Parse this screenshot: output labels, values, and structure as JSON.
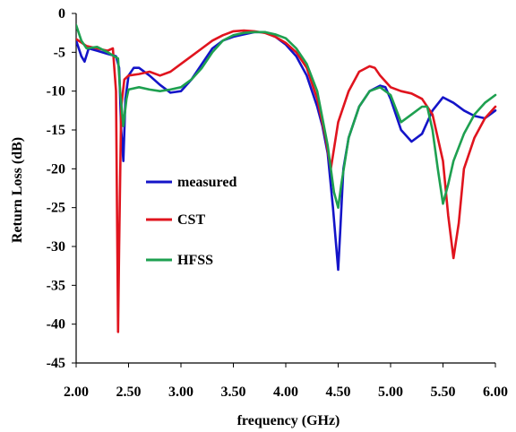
{
  "chart_data": {
    "type": "line",
    "title": "",
    "xlabel": "frequency (GHz)",
    "ylabel": "Return Loss (dB)",
    "xlim": [
      2.0,
      6.0
    ],
    "ylim": [
      -45,
      0
    ],
    "x_ticks": [
      2.0,
      2.5,
      3.0,
      3.5,
      4.0,
      4.5,
      5.0,
      5.5,
      6.0
    ],
    "x_tick_labels": [
      "2.00",
      "2.50",
      "3.00",
      "3.50",
      "4.00",
      "4.50",
      "5.00",
      "5.50",
      "6.00"
    ],
    "y_ticks": [
      0,
      -5,
      -10,
      -15,
      -20,
      -25,
      -30,
      -35,
      -40,
      -45
    ],
    "y_tick_labels": [
      "0",
      "-5",
      "-10",
      "-15",
      "-20",
      "-25",
      "-30",
      "-35",
      "-40",
      "-45"
    ],
    "grid": false,
    "legend_position": "center-left",
    "series": [
      {
        "name": "measured",
        "color": "#1414c8",
        "points": [
          [
            2.0,
            -3.5
          ],
          [
            2.05,
            -5.5
          ],
          [
            2.08,
            -6.2
          ],
          [
            2.12,
            -4.5
          ],
          [
            2.2,
            -4.8
          ],
          [
            2.3,
            -5.2
          ],
          [
            2.38,
            -5.5
          ],
          [
            2.41,
            -7
          ],
          [
            2.43,
            -15
          ],
          [
            2.45,
            -19
          ],
          [
            2.47,
            -11
          ],
          [
            2.5,
            -8
          ],
          [
            2.55,
            -7
          ],
          [
            2.6,
            -7
          ],
          [
            2.7,
            -8
          ],
          [
            2.8,
            -9.2
          ],
          [
            2.9,
            -10.2
          ],
          [
            3.0,
            -10
          ],
          [
            3.1,
            -8.5
          ],
          [
            3.2,
            -6.5
          ],
          [
            3.3,
            -4.5
          ],
          [
            3.4,
            -3.5
          ],
          [
            3.5,
            -3
          ],
          [
            3.6,
            -2.7
          ],
          [
            3.7,
            -2.4
          ],
          [
            3.8,
            -2.4
          ],
          [
            3.9,
            -3
          ],
          [
            4.0,
            -4
          ],
          [
            4.1,
            -5.5
          ],
          [
            4.2,
            -8
          ],
          [
            4.3,
            -12
          ],
          [
            4.35,
            -14.5
          ],
          [
            4.4,
            -18
          ],
          [
            4.45,
            -25
          ],
          [
            4.5,
            -33
          ],
          [
            4.52,
            -28
          ],
          [
            4.55,
            -20
          ],
          [
            4.6,
            -16
          ],
          [
            4.7,
            -12
          ],
          [
            4.8,
            -10
          ],
          [
            4.9,
            -9.3
          ],
          [
            4.95,
            -9.5
          ],
          [
            5.0,
            -11
          ],
          [
            5.1,
            -15
          ],
          [
            5.2,
            -16.5
          ],
          [
            5.3,
            -15.5
          ],
          [
            5.4,
            -12.5
          ],
          [
            5.5,
            -10.8
          ],
          [
            5.6,
            -11.5
          ],
          [
            5.7,
            -12.5
          ],
          [
            5.8,
            -13.2
          ],
          [
            5.9,
            -13.5
          ],
          [
            6.0,
            -12.5
          ]
        ]
      },
      {
        "name": "CST",
        "color": "#e0141e",
        "points": [
          [
            2.0,
            -3.3
          ],
          [
            2.1,
            -4.2
          ],
          [
            2.2,
            -4.5
          ],
          [
            2.3,
            -4.8
          ],
          [
            2.35,
            -4.5
          ],
          [
            2.38,
            -10
          ],
          [
            2.39,
            -25
          ],
          [
            2.4,
            -41
          ],
          [
            2.41,
            -30
          ],
          [
            2.43,
            -12
          ],
          [
            2.46,
            -8.5
          ],
          [
            2.5,
            -8
          ],
          [
            2.6,
            -7.8
          ],
          [
            2.7,
            -7.5
          ],
          [
            2.8,
            -8
          ],
          [
            2.9,
            -7.5
          ],
          [
            3.0,
            -6.5
          ],
          [
            3.1,
            -5.5
          ],
          [
            3.2,
            -4.5
          ],
          [
            3.3,
            -3.5
          ],
          [
            3.4,
            -2.8
          ],
          [
            3.5,
            -2.3
          ],
          [
            3.6,
            -2.2
          ],
          [
            3.7,
            -2.3
          ],
          [
            3.8,
            -2.5
          ],
          [
            3.9,
            -3
          ],
          [
            4.0,
            -3.8
          ],
          [
            4.1,
            -5
          ],
          [
            4.2,
            -7
          ],
          [
            4.3,
            -11
          ],
          [
            4.38,
            -16
          ],
          [
            4.43,
            -20
          ],
          [
            4.5,
            -14
          ],
          [
            4.6,
            -10
          ],
          [
            4.7,
            -7.5
          ],
          [
            4.8,
            -6.8
          ],
          [
            4.85,
            -7
          ],
          [
            4.9,
            -8
          ],
          [
            5.0,
            -9.5
          ],
          [
            5.1,
            -10
          ],
          [
            5.2,
            -10.3
          ],
          [
            5.3,
            -11
          ],
          [
            5.4,
            -13
          ],
          [
            5.5,
            -19
          ],
          [
            5.55,
            -26
          ],
          [
            5.6,
            -31.5
          ],
          [
            5.65,
            -27
          ],
          [
            5.7,
            -20
          ],
          [
            5.8,
            -16
          ],
          [
            5.9,
            -13.5
          ],
          [
            6.0,
            -12
          ]
        ]
      },
      {
        "name": "HFSS",
        "color": "#1ea050",
        "points": [
          [
            2.0,
            -1.5
          ],
          [
            2.05,
            -3.5
          ],
          [
            2.1,
            -4.5
          ],
          [
            2.2,
            -4.3
          ],
          [
            2.3,
            -5
          ],
          [
            2.4,
            -5.8
          ],
          [
            2.42,
            -10
          ],
          [
            2.45,
            -14.5
          ],
          [
            2.48,
            -11
          ],
          [
            2.5,
            -9.8
          ],
          [
            2.6,
            -9.5
          ],
          [
            2.7,
            -9.8
          ],
          [
            2.8,
            -10
          ],
          [
            2.9,
            -9.8
          ],
          [
            3.0,
            -9.5
          ],
          [
            3.1,
            -8.5
          ],
          [
            3.2,
            -7
          ],
          [
            3.3,
            -5
          ],
          [
            3.4,
            -3.5
          ],
          [
            3.5,
            -2.8
          ],
          [
            3.6,
            -2.5
          ],
          [
            3.7,
            -2.4
          ],
          [
            3.8,
            -2.4
          ],
          [
            3.9,
            -2.7
          ],
          [
            4.0,
            -3.2
          ],
          [
            4.1,
            -4.5
          ],
          [
            4.2,
            -6.5
          ],
          [
            4.3,
            -10
          ],
          [
            4.4,
            -17
          ],
          [
            4.46,
            -23
          ],
          [
            4.5,
            -25
          ],
          [
            4.53,
            -22
          ],
          [
            4.6,
            -16
          ],
          [
            4.7,
            -12
          ],
          [
            4.8,
            -10
          ],
          [
            4.9,
            -9.5
          ],
          [
            5.0,
            -10.5
          ],
          [
            5.1,
            -14
          ],
          [
            5.2,
            -13
          ],
          [
            5.3,
            -12
          ],
          [
            5.35,
            -12
          ],
          [
            5.4,
            -15
          ],
          [
            5.45,
            -20
          ],
          [
            5.5,
            -24.5
          ],
          [
            5.55,
            -22
          ],
          [
            5.6,
            -19
          ],
          [
            5.7,
            -15.5
          ],
          [
            5.8,
            -13
          ],
          [
            5.9,
            -11.5
          ],
          [
            6.0,
            -10.5
          ]
        ]
      }
    ]
  }
}
